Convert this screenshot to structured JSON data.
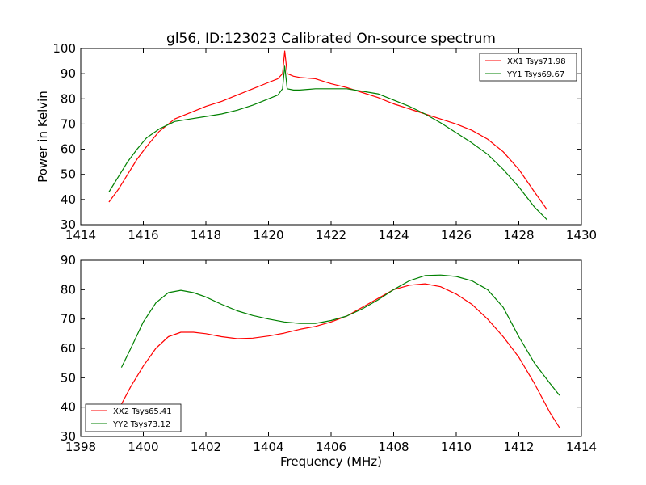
{
  "chart_data": [
    {
      "type": "line",
      "title": "gl56, ID:123023 Calibrated On-source spectrum",
      "xlabel": "",
      "ylabel": "Power in Kelvin",
      "xlim": [
        1414,
        1430
      ],
      "ylim": [
        30,
        100
      ],
      "xticks": [
        "1414",
        "1416",
        "1418",
        "1420",
        "1422",
        "1424",
        "1426",
        "1428",
        "1430"
      ],
      "yticks": [
        "30",
        "40",
        "50",
        "60",
        "70",
        "80",
        "90",
        "100"
      ],
      "grid": false,
      "legend": "top-right",
      "series": [
        {
          "name": "XX1 Tsys71.98",
          "color": "#ff0000",
          "x": [
            1414.9,
            1415.2,
            1415.5,
            1415.8,
            1416.1,
            1416.5,
            1417.0,
            1417.5,
            1418.0,
            1418.5,
            1419.0,
            1419.5,
            1420.0,
            1420.3,
            1420.45,
            1420.52,
            1420.6,
            1420.8,
            1421.0,
            1421.5,
            1422.0,
            1422.5,
            1423.0,
            1423.5,
            1424.0,
            1424.5,
            1425.0,
            1425.5,
            1426.0,
            1426.5,
            1427.0,
            1427.5,
            1428.0,
            1428.5,
            1428.9
          ],
          "y": [
            39,
            44,
            50,
            56,
            61,
            67,
            72,
            74.5,
            77,
            79,
            81.5,
            84,
            86.5,
            88,
            90,
            99,
            90,
            89,
            88.5,
            88,
            86,
            84.5,
            82.5,
            80.5,
            78,
            76,
            74,
            72,
            70,
            67.5,
            64,
            59,
            52,
            43,
            36
          ]
        },
        {
          "name": "YY1 Tsys69.67",
          "color": "#008000",
          "x": [
            1414.9,
            1415.2,
            1415.5,
            1415.8,
            1416.1,
            1416.5,
            1417.0,
            1417.5,
            1418.0,
            1418.5,
            1419.0,
            1419.5,
            1420.0,
            1420.3,
            1420.45,
            1420.52,
            1420.6,
            1420.8,
            1421.0,
            1421.5,
            1422.0,
            1422.5,
            1423.0,
            1423.5,
            1424.0,
            1424.5,
            1425.0,
            1425.5,
            1426.0,
            1426.5,
            1427.0,
            1427.5,
            1428.0,
            1428.5,
            1428.9
          ],
          "y": [
            43,
            49,
            55,
            60,
            64.5,
            68,
            71,
            72,
            73,
            74,
            75.5,
            77.5,
            80,
            81.5,
            84,
            93,
            84,
            83.5,
            83.5,
            84,
            84,
            84,
            83,
            82,
            79.5,
            77,
            74,
            70.5,
            66.5,
            62.5,
            58,
            52,
            45,
            37,
            32
          ]
        }
      ]
    },
    {
      "type": "line",
      "title": "",
      "xlabel": "Frequency (MHz)",
      "ylabel": "",
      "xlim": [
        1398,
        1414
      ],
      "ylim": [
        30,
        90
      ],
      "xticks": [
        "1398",
        "1400",
        "1402",
        "1404",
        "1406",
        "1408",
        "1410",
        "1412",
        "1414"
      ],
      "yticks": [
        "30",
        "40",
        "50",
        "60",
        "70",
        "80",
        "90"
      ],
      "grid": false,
      "legend": "bottom-left",
      "series": [
        {
          "name": "XX2 Tsys65.41",
          "color": "#ff0000",
          "x": [
            1399.3,
            1399.6,
            1400.0,
            1400.4,
            1400.8,
            1401.2,
            1401.6,
            1402.0,
            1402.5,
            1403.0,
            1403.5,
            1404.0,
            1404.5,
            1405.0,
            1405.5,
            1406.0,
            1406.5,
            1407.0,
            1407.5,
            1408.0,
            1408.5,
            1409.0,
            1409.5,
            1410.0,
            1410.5,
            1411.0,
            1411.5,
            1412.0,
            1412.5,
            1413.0,
            1413.3
          ],
          "y": [
            41,
            47,
            54,
            60,
            64,
            65.5,
            65.5,
            65,
            64,
            63.3,
            63.5,
            64.2,
            65.2,
            66.5,
            67.5,
            69,
            71,
            74,
            77,
            80,
            81.5,
            82,
            81,
            78.5,
            75,
            70,
            64,
            57,
            48,
            38,
            33
          ]
        },
        {
          "name": "YY2 Tsys73.12",
          "color": "#008000",
          "x": [
            1399.3,
            1399.6,
            1400.0,
            1400.4,
            1400.8,
            1401.2,
            1401.6,
            1402.0,
            1402.5,
            1403.0,
            1403.5,
            1404.0,
            1404.5,
            1405.0,
            1405.5,
            1406.0,
            1406.5,
            1407.0,
            1407.5,
            1408.0,
            1408.5,
            1409.0,
            1409.5,
            1410.0,
            1410.5,
            1411.0,
            1411.5,
            1412.0,
            1412.5,
            1413.0,
            1413.3
          ],
          "y": [
            53.5,
            60,
            69,
            75.5,
            79,
            79.8,
            79,
            77.5,
            75,
            72.8,
            71.2,
            70,
            69,
            68.5,
            68.5,
            69.5,
            71,
            73.5,
            76.5,
            80,
            83,
            84.8,
            85,
            84.5,
            83,
            80,
            74,
            64,
            55,
            48,
            44
          ]
        }
      ]
    }
  ]
}
